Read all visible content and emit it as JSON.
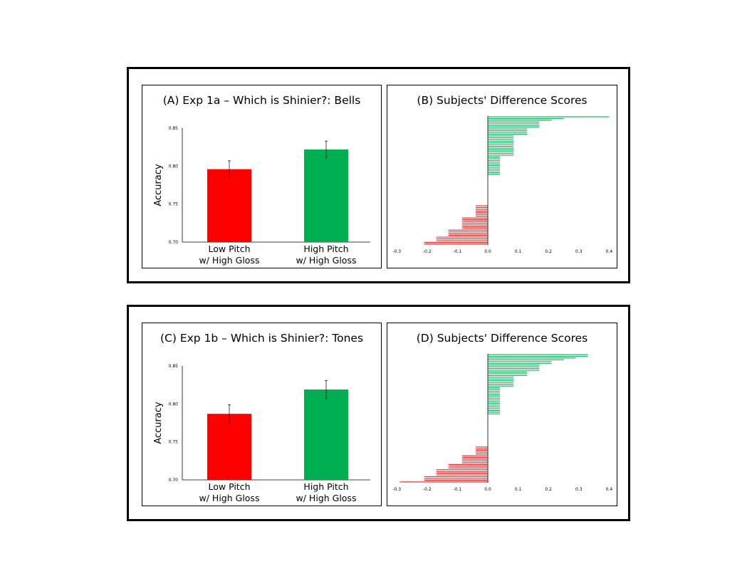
{
  "colors": {
    "red": "#ff0000",
    "green": "#00b050",
    "hred": "#ee3333",
    "hgreen": "#1fb868"
  },
  "figures": [
    {
      "accuracy_title": "(A) Exp 1a – Which is Shinier?: Bells",
      "diff_title": "(B) Subjects' Difference Scores"
    },
    {
      "accuracy_title": "(C) Exp 1b – Which is Shinier?: Tones",
      "diff_title": "(D) Subjects' Difference Scores"
    }
  ],
  "chart_data": [
    {
      "type": "bar",
      "title": "(A) Exp 1a – Which is Shinier?: Bells",
      "ylabel": "Accuracy",
      "ylim": [
        0.7,
        0.85
      ],
      "yticks": [
        "0.70",
        "0.75",
        "0.80",
        "0.85"
      ],
      "categories": [
        [
          "Low Pitch",
          "w/ High Gloss"
        ],
        [
          "High Pitch",
          "w/ High Gloss"
        ]
      ],
      "values": [
        0.796,
        0.822
      ],
      "errors": [
        0.011,
        0.011
      ],
      "colors": [
        "#ff0000",
        "#00b050"
      ]
    },
    {
      "type": "bar",
      "title": "(B) Subjects' Difference Scores",
      "orientation": "horizontal",
      "xlim": [
        -0.3,
        0.4
      ],
      "xticks": [
        "-0.3",
        "-0.2",
        "-0.1",
        "0.0",
        "0.1",
        "0.2",
        "0.3",
        "0.4"
      ],
      "values": [
        0.4,
        0.25,
        0.21,
        0.17,
        0.17,
        0.17,
        0.17,
        0.13,
        0.13,
        0.13,
        0.13,
        0.085,
        0.085,
        0.085,
        0.085,
        0.085,
        0.085,
        0.085,
        0.085,
        0.085,
        0.085,
        0.085,
        0.085,
        0.04,
        0.04,
        0.04,
        0.04,
        0.04,
        0.04,
        0.04,
        0.04,
        0.04,
        0.04,
        0.04,
        0,
        0,
        0,
        0,
        0,
        0,
        0,
        0,
        0,
        0,
        0,
        0,
        0,
        0,
        0,
        0,
        0,
        -0.04,
        -0.04,
        -0.04,
        -0.04,
        -0.04,
        -0.04,
        -0.04,
        -0.085,
        -0.085,
        -0.085,
        -0.085,
        -0.085,
        -0.085,
        -0.085,
        -0.13,
        -0.13,
        -0.13,
        -0.13,
        -0.17,
        -0.17,
        -0.17,
        -0.21,
        -0.21
      ],
      "colors": {
        "positive": "#1fb868",
        "negative": "#ee3333"
      }
    },
    {
      "type": "bar",
      "title": "(C) Exp 1b – Which is Shinier?: Tones",
      "ylabel": "Accuracy",
      "ylim": [
        0.7,
        0.85
      ],
      "yticks": [
        "0.70",
        "0.75",
        "0.80",
        "0.85"
      ],
      "categories": [
        [
          "Low Pitch",
          "w/ High Gloss"
        ],
        [
          "High Pitch",
          "w/ High Gloss"
        ]
      ],
      "values": [
        0.787,
        0.819
      ],
      "errors": [
        0.012,
        0.012
      ],
      "colors": [
        "#ff0000",
        "#00b050"
      ]
    },
    {
      "type": "bar",
      "title": "(D) Subjects' Difference Scores",
      "orientation": "horizontal",
      "xlim": [
        -0.3,
        0.4
      ],
      "xticks": [
        "-0.3",
        "-0.2",
        "-0.1",
        "0.0",
        "0.1",
        "0.2",
        "0.3",
        "0.4"
      ],
      "values": [
        0.33,
        0.33,
        0.29,
        0.25,
        0.21,
        0.21,
        0.17,
        0.17,
        0.17,
        0.17,
        0.13,
        0.13,
        0.13,
        0.085,
        0.085,
        0.085,
        0.085,
        0.085,
        0.085,
        0.04,
        0.04,
        0.04,
        0.04,
        0.04,
        0.04,
        0.04,
        0.04,
        0.04,
        0.04,
        0.04,
        0.04,
        0.04,
        0.04,
        0.04,
        0.04,
        0,
        0,
        0,
        0,
        0,
        0,
        0,
        0,
        0,
        0,
        0,
        0,
        0,
        0,
        0,
        0,
        0,
        0,
        -0.04,
        -0.04,
        -0.04,
        -0.04,
        -0.04,
        -0.085,
        -0.085,
        -0.085,
        -0.085,
        -0.085,
        -0.13,
        -0.13,
        -0.13,
        -0.17,
        -0.17,
        -0.17,
        -0.17,
        -0.21,
        -0.21,
        -0.21,
        -0.29
      ],
      "colors": {
        "positive": "#1fb868",
        "negative": "#ee3333"
      }
    }
  ]
}
